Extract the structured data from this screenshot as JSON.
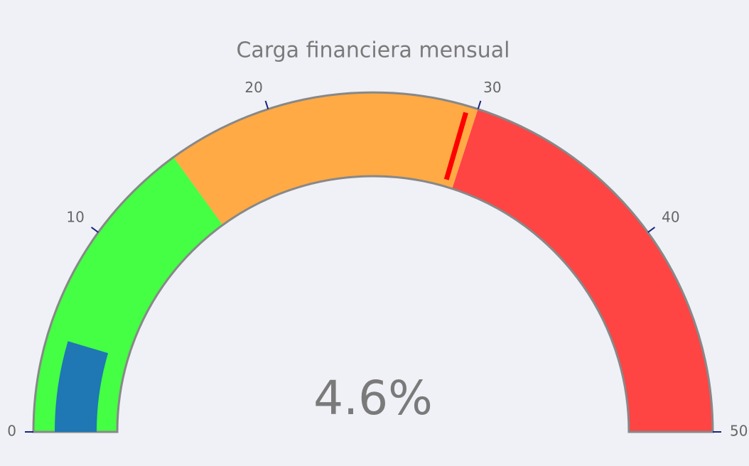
{
  "chart_data": {
    "type": "gauge",
    "title": "Carga financiera mensual",
    "value": 4.6,
    "value_label": "4.6%",
    "range": [
      0,
      50
    ],
    "ticks": [
      0,
      10,
      20,
      30,
      40,
      50
    ],
    "bar_color": "#1f77b4",
    "border_color": "#888888",
    "steps": [
      {
        "range": [
          0,
          15
        ],
        "color": "#44ff44"
      },
      {
        "range": [
          15,
          30
        ],
        "color": "#ffaa44"
      },
      {
        "range": [
          30,
          50
        ],
        "color": "#ff4444"
      }
    ],
    "threshold": {
      "value": 29.5,
      "color": "#ff0000"
    }
  }
}
